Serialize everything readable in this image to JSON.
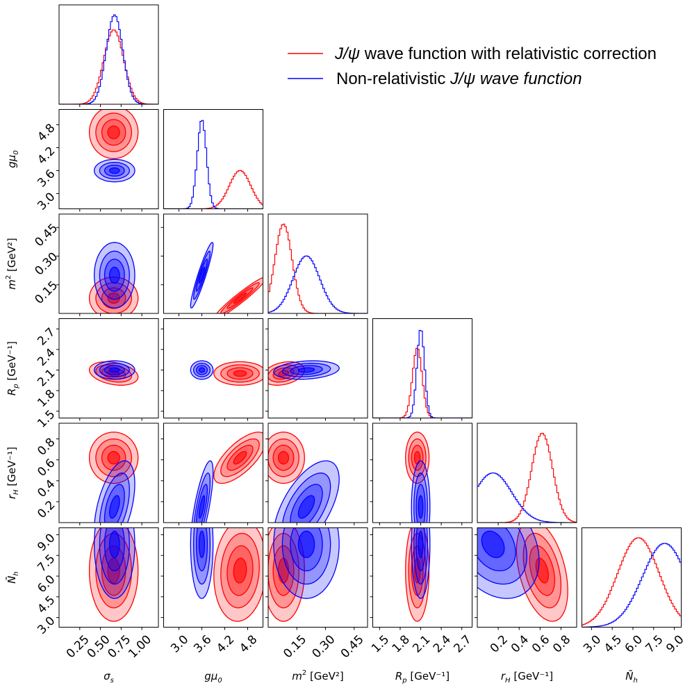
{
  "chart_data": {
    "type": "corner",
    "title": "",
    "parameters": [
      {
        "key": "sigma",
        "label": "σ",
        "sub": "s",
        "unit": "",
        "range": [
          0.0,
          1.2
        ],
        "ticks": [
          "0.25",
          "0.50",
          "0.75",
          "1.00"
        ],
        "tickvals": [
          0.25,
          0.5,
          0.75,
          1.0
        ]
      },
      {
        "key": "gmu0",
        "label": "gμ",
        "sub": "0",
        "unit": "",
        "range": [
          2.6,
          5.2
        ],
        "ticks": [
          "3.0",
          "3.6",
          "4.2",
          "4.8"
        ],
        "tickvals": [
          3.0,
          3.6,
          4.2,
          4.8
        ]
      },
      {
        "key": "m2",
        "label": "m",
        "sup": "2",
        "unit": " [GeV²]",
        "range": [
          0.0,
          0.52
        ],
        "ticks": [
          "0.15",
          "0.30",
          "0.45"
        ],
        "tickvals": [
          0.15,
          0.3,
          0.45
        ]
      },
      {
        "key": "Rp",
        "label": "R",
        "sub": "p",
        "unit": " [GeV⁻¹]",
        "range": [
          1.4,
          2.85
        ],
        "ticks": [
          "1.5",
          "1.8",
          "2.1",
          "2.4",
          "2.7"
        ],
        "tickvals": [
          1.5,
          1.8,
          2.1,
          2.4,
          2.7
        ]
      },
      {
        "key": "rH",
        "label": "r",
        "sub": "H",
        "unit": " [GeV⁻¹]",
        "range": [
          0.0,
          0.95
        ],
        "ticks": [
          "0.2",
          "0.4",
          "0.6",
          "0.8"
        ],
        "tickvals": [
          0.2,
          0.4,
          0.6,
          0.8
        ]
      },
      {
        "key": "Nh",
        "label": "N̄",
        "sub": "h",
        "unit": "",
        "range": [
          2.3,
          9.5
        ],
        "ticks": [
          "3.0",
          "4.5",
          "6.0",
          "7.5",
          "9.0"
        ],
        "tickvals": [
          3.0,
          4.5,
          6.0,
          7.5,
          9.0
        ]
      }
    ],
    "series": [
      {
        "name": "J/ψ wave function with relativistic correction",
        "legend_prefix": "J/ψ",
        "legend_suffix": " wave function with relativistic correction",
        "color": "#ff0000",
        "means": {
          "sigma": 0.66,
          "gmu0": 4.6,
          "m2": 0.08,
          "Rp": 2.05,
          "rH": 0.62,
          "Nh": 6.4
        },
        "stds": {
          "sigma": 0.12,
          "gmu0": 0.28,
          "m2": 0.045,
          "Rp": 0.07,
          "rH": 0.1,
          "Nh": 1.5
        },
        "correlations": [
          [
            "gmu0",
            "m2",
            0.96
          ],
          [
            "gmu0",
            "rH",
            0.7
          ],
          [
            "m2",
            "Rp",
            0.3
          ],
          [
            "sigma",
            "Rp",
            -0.3
          ],
          [
            "rH",
            "Nh",
            -0.4
          ],
          [
            "gmu0",
            "Nh",
            0.1
          ]
        ]
      },
      {
        "name": "Non-relativistic J/ψ wave function",
        "legend_prefix": "Non-relativistic ",
        "legend_suffix": "J/ψ wave function",
        "color": "#0000ff",
        "means": {
          "sigma": 0.67,
          "gmu0": 3.6,
          "m2": 0.2,
          "Rp": 2.1,
          "rH": 0.15,
          "Nh": 8.3
        },
        "stds": {
          "sigma": 0.1,
          "gmu0": 0.12,
          "m2": 0.07,
          "Rp": 0.055,
          "rH": 0.18,
          "Nh": 1.6
        },
        "correlations": [
          [
            "gmu0",
            "m2",
            0.93
          ],
          [
            "gmu0",
            "rH",
            0.75
          ],
          [
            "m2",
            "rH",
            0.6
          ],
          [
            "sigma",
            "rH",
            0.5
          ],
          [
            "rH",
            "Nh",
            -0.3
          ],
          [
            "m2",
            "Rp",
            0.2
          ]
        ]
      }
    ],
    "legend_position": "top-right"
  }
}
